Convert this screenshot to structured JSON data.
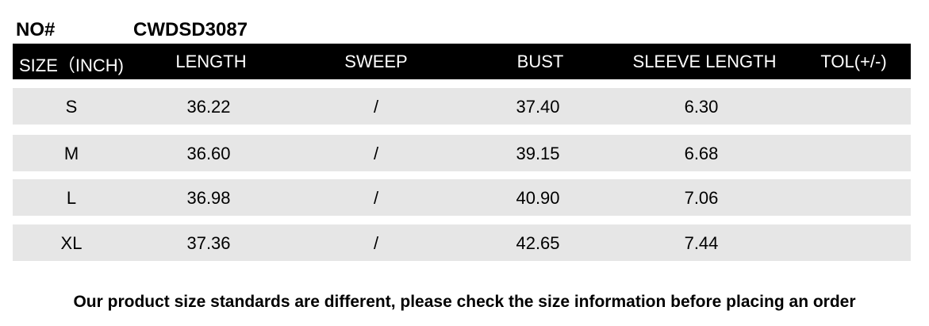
{
  "product": {
    "label": "NO#",
    "code": "CWDSD3087"
  },
  "columns": [
    "SIZE（INCH)",
    "LENGTH",
    "SWEEP",
    "BUST",
    "SLEEVE LENGTH",
    "TOL(+/-)"
  ],
  "rows": [
    [
      "S",
      "36.22",
      "/",
      "37.40",
      "6.30",
      ""
    ],
    [
      "M",
      "36.60",
      "/",
      "39.15",
      "6.68",
      ""
    ],
    [
      "L",
      "36.98",
      "/",
      "40.90",
      "7.06",
      ""
    ],
    [
      "XL",
      "37.36",
      "/",
      "42.65",
      "7.44",
      ""
    ]
  ],
  "note": "Our product size standards are different, please check the size information before placing an order"
}
